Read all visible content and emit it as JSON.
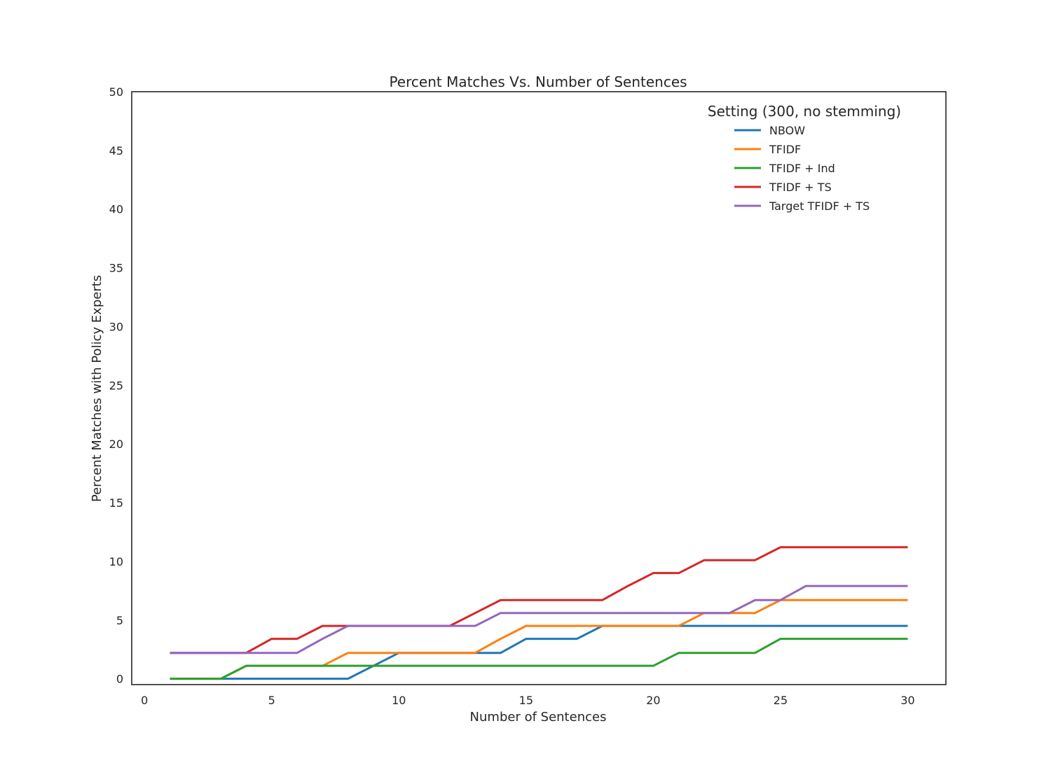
{
  "chart_data": {
    "type": "line",
    "title": "Percent Matches Vs. Number of Sentences",
    "xlabel": "Number of Sentences",
    "ylabel": "Percent Matches with Policy Experts",
    "xlim": [
      -0.5,
      31.5
    ],
    "ylim": [
      -0.5,
      50
    ],
    "xticks": [
      0,
      5,
      10,
      15,
      20,
      25,
      30
    ],
    "yticks": [
      0,
      5,
      10,
      15,
      20,
      25,
      30,
      35,
      40,
      45,
      50
    ],
    "grid": false,
    "legend": {
      "title": "Setting (300, no stemming)",
      "placement": "top-right"
    },
    "x": [
      1,
      2,
      3,
      4,
      5,
      6,
      7,
      8,
      9,
      10,
      11,
      12,
      13,
      14,
      15,
      16,
      17,
      18,
      19,
      20,
      21,
      22,
      23,
      24,
      25,
      26,
      27,
      28,
      29,
      30
    ],
    "series": [
      {
        "name": "NBOW",
        "color": "#1f77b4",
        "values": [
          0,
          0,
          0,
          0,
          0,
          0,
          0,
          0,
          1.1,
          2.2,
          2.2,
          2.2,
          2.2,
          2.2,
          3.4,
          3.4,
          3.4,
          4.5,
          4.5,
          4.5,
          4.5,
          4.5,
          4.5,
          4.5,
          4.5,
          4.5,
          4.5,
          4.5,
          4.5,
          4.5
        ]
      },
      {
        "name": "TFIDF",
        "color": "#ff7f0e",
        "values": [
          0,
          0,
          0,
          1.1,
          1.1,
          1.1,
          1.1,
          2.2,
          2.2,
          2.2,
          2.2,
          2.2,
          2.2,
          3.4,
          4.5,
          4.5,
          4.5,
          4.5,
          4.5,
          4.5,
          4.5,
          5.6,
          5.6,
          5.6,
          6.7,
          6.7,
          6.7,
          6.7,
          6.7,
          6.7
        ]
      },
      {
        "name": "TFIDF + Ind",
        "color": "#2ca02c",
        "values": [
          0,
          0,
          0,
          1.1,
          1.1,
          1.1,
          1.1,
          1.1,
          1.1,
          1.1,
          1.1,
          1.1,
          1.1,
          1.1,
          1.1,
          1.1,
          1.1,
          1.1,
          1.1,
          1.1,
          2.2,
          2.2,
          2.2,
          2.2,
          3.4,
          3.4,
          3.4,
          3.4,
          3.4,
          3.4
        ]
      },
      {
        "name": "TFIDF + TS",
        "color": "#d62728",
        "values": [
          2.2,
          2.2,
          2.2,
          2.2,
          3.4,
          3.4,
          4.5,
          4.5,
          4.5,
          4.5,
          4.5,
          4.5,
          5.6,
          6.7,
          6.7,
          6.7,
          6.7,
          6.7,
          7.9,
          9.0,
          9.0,
          10.1,
          10.1,
          10.1,
          11.2,
          11.2,
          11.2,
          11.2,
          11.2,
          11.2
        ]
      },
      {
        "name": "Target TFIDF + TS",
        "color": "#9467bd",
        "values": [
          2.2,
          2.2,
          2.2,
          2.2,
          2.2,
          2.2,
          3.4,
          4.5,
          4.5,
          4.5,
          4.5,
          4.5,
          4.5,
          5.6,
          5.6,
          5.6,
          5.6,
          5.6,
          5.6,
          5.6,
          5.6,
          5.6,
          5.6,
          6.7,
          6.7,
          7.9,
          7.9,
          7.9,
          7.9,
          7.9
        ]
      }
    ]
  }
}
